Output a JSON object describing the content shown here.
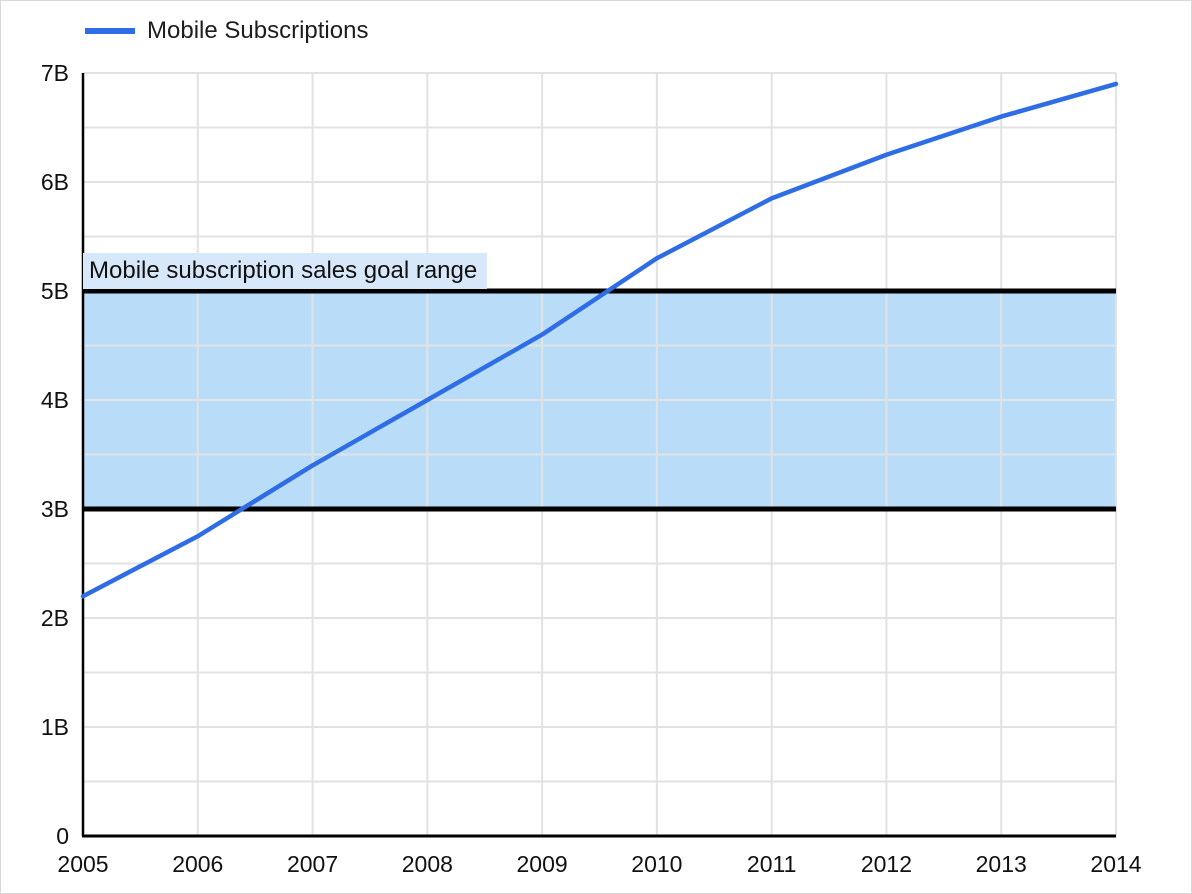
{
  "chart_data": {
    "type": "line",
    "title": "",
    "legend": {
      "position": "top-left",
      "label": "Mobile Subscriptions"
    },
    "x": [
      2005,
      2006,
      2007,
      2008,
      2009,
      2010,
      2011,
      2012,
      2013,
      2014
    ],
    "series": [
      {
        "name": "Mobile Subscriptions",
        "color": "#2e6de5",
        "values": [
          2.2,
          2.75,
          3.4,
          4.0,
          4.6,
          5.3,
          5.85,
          6.25,
          6.6,
          6.9
        ]
      }
    ],
    "xlabel": "",
    "ylabel": "",
    "ylim": [
      0,
      7
    ],
    "ytick_values": [
      0,
      1,
      2,
      3,
      4,
      5,
      6,
      7
    ],
    "ytick_labels": [
      "0",
      "1B",
      "2B",
      "3B",
      "4B",
      "5B",
      "6B",
      "7B"
    ],
    "minor_ytick_step": 0.5,
    "grid": true,
    "band": {
      "label": "Mobile subscription sales goal range",
      "from": 3,
      "to": 5,
      "fill": "#b9ddf9",
      "line_color": "#000000",
      "label_bg": "#d7e8fb"
    },
    "colors": {
      "gridline": "#e2e2e2",
      "axis": "#000000",
      "tick_text": "#111111"
    }
  }
}
